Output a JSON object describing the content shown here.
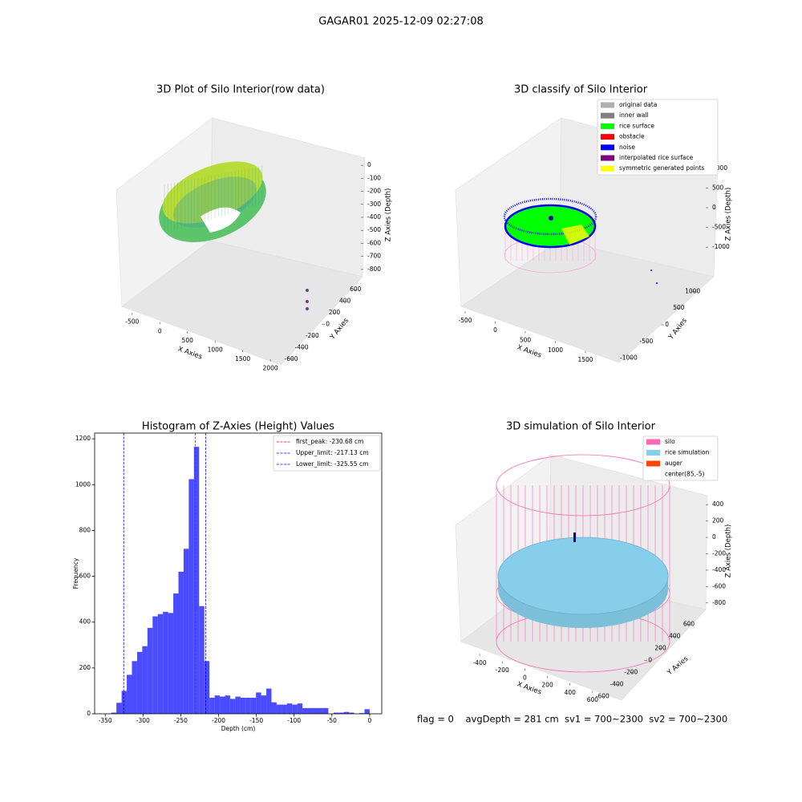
{
  "title": "GAGAR01 2025-12-09 02:27:08",
  "status_text": "flag = 0    avgDepth = 281 cm  sv1 = 700~2300  sv2 = 700~2300",
  "chart_data": [
    {
      "type": "scatter3d",
      "title": "3D Plot of Silo Interior(row data)",
      "xlabel": "X Axies",
      "ylabel": "Y Axies",
      "zlabel": "Z Axies (Depth)",
      "xlim": [
        -700,
        2100
      ],
      "xticks": [
        -500,
        0,
        500,
        1000,
        1500,
        2000
      ],
      "ylim": [
        -700,
        700
      ],
      "yticks": [
        -600,
        -400,
        -200,
        0,
        200,
        400,
        600
      ],
      "zlim": [
        -850,
        50
      ],
      "zticks": [
        0,
        -100,
        -200,
        -300,
        -400,
        -500,
        -600,
        -700,
        -800
      ]
    },
    {
      "type": "scatter3d",
      "title": "3D classify of Silo Interior",
      "xlabel": "X Axies",
      "ylabel": "Y Axies",
      "zlabel": "Z Axies (Depth)",
      "xlim": [
        -700,
        1900
      ],
      "xticks": [
        -500,
        0,
        500,
        1000,
        1500
      ],
      "ylim": [
        -1200,
        1200
      ],
      "yticks": [
        -1000,
        -500,
        0,
        500,
        1000
      ],
      "zlim": [
        -1300,
        1300
      ],
      "zticks": [
        1000,
        500,
        0,
        -500,
        -1000
      ],
      "legend": [
        {
          "name": "original data",
          "color": "#b0b0b0"
        },
        {
          "name": "inner wall",
          "color": "#808080"
        },
        {
          "name": "rice surface",
          "color": "#00ff00"
        },
        {
          "name": "obstacle",
          "color": "#ff0000"
        },
        {
          "name": "noise",
          "color": "#0000ff"
        },
        {
          "name": "interpolated rice surface",
          "color": "#800080"
        },
        {
          "name": "symmetric generated points",
          "color": "#ffff00"
        }
      ]
    },
    {
      "type": "histogram",
      "title": "Histogram of Z-Axies (Height) Values",
      "xlabel": "Depth (cm)",
      "ylabel": "Frequency",
      "color": "#0000ff",
      "alpha": 0.7,
      "xlim": [
        -364,
        16
      ],
      "xticks": [
        -350,
        -300,
        -250,
        -200,
        -150,
        -100,
        -50,
        0
      ],
      "ylim": [
        0,
        1225
      ],
      "yticks": [
        0,
        200,
        400,
        600,
        800,
        1000,
        1200
      ],
      "bins": [
        -342,
        -335.16,
        -328.32,
        -321.48,
        -314.64,
        -307.8,
        -300.96,
        -294.12,
        -287.28,
        -280.44,
        -273.6,
        -266.76,
        -259.92,
        -253.08,
        -246.24,
        -239.4,
        -232.56,
        -225.72,
        -218.88,
        -212.04,
        -205.2,
        -198.36,
        -191.52,
        -184.68,
        -177.84,
        -171,
        -164.16,
        -157.32,
        -150.48,
        -143.64,
        -136.8,
        -129.96,
        -123.12,
        -116.28,
        -109.44,
        -102.6,
        -95.76,
        -88.92,
        -82.08,
        -75.24,
        -68.4,
        -61.56,
        -54.72,
        -47.88,
        -41.04,
        -34.2,
        -27.36,
        -20.52,
        -13.68,
        -6.84,
        0
      ],
      "counts": [
        5,
        48,
        100,
        170,
        230,
        270,
        295,
        375,
        425,
        435,
        445,
        440,
        525,
        620,
        720,
        1024,
        1165,
        470,
        230,
        70,
        80,
        75,
        80,
        65,
        75,
        70,
        70,
        70,
        93,
        80,
        110,
        50,
        40,
        40,
        45,
        40,
        45,
        25,
        25,
        25,
        25,
        25,
        0,
        5,
        5,
        8,
        5,
        0,
        3,
        20
      ],
      "vlines": [
        {
          "label": "first_peak: -230.68 cm",
          "value": -230.68,
          "color": "#ff0000"
        },
        {
          "label": "Upper_limit: -217.13 cm",
          "value": -217.13,
          "color": "#0000ff"
        },
        {
          "label": "Lower_limit: -325.55 cm",
          "value": -325.55,
          "color": "#0000ff"
        }
      ]
    },
    {
      "type": "scatter3d",
      "title": "3D simulation of Silo Interior",
      "xlabel": "X Axies",
      "ylabel": "Y Axies",
      "zlabel": "Z Axies (Depth)",
      "xlim": [
        -550,
        750
      ],
      "xticks": [
        -400,
        -200,
        0,
        200,
        400,
        600
      ],
      "ylim": [
        -700,
        700
      ],
      "yticks": [
        -600,
        -400,
        -200,
        0,
        200,
        400,
        600
      ],
      "zlim": [
        -900,
        500
      ],
      "zticks": [
        400,
        200,
        0,
        -200,
        -400,
        -600,
        -800
      ],
      "legend": [
        {
          "name": "silo",
          "color": "#ff69b4"
        },
        {
          "name": "rice simulation",
          "color": "#87ceeb"
        },
        {
          "name": "auger",
          "color": "#ff4500"
        },
        {
          "name": "center(85,-5)",
          "color": "#ffffff"
        }
      ]
    }
  ]
}
